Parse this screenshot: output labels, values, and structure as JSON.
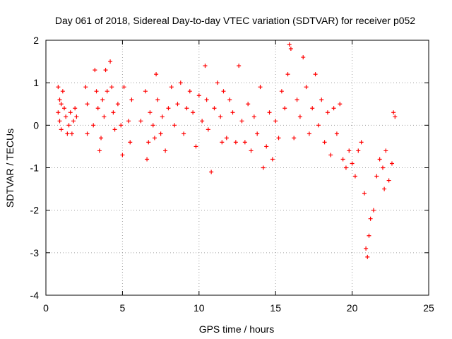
{
  "chart_data": {
    "type": "scatter",
    "title": "Day 061 of 2018, Sidereal Day-to-day VTEC variation (SDTVAR) for receiver p052",
    "xlabel": "GPS time / hours",
    "ylabel": "SDTVAR / TECUs",
    "xlim": [
      0,
      25
    ],
    "ylim": [
      -4,
      2
    ],
    "xticks": [
      "0",
      "5",
      "10",
      "15",
      "20",
      "25"
    ],
    "yticks": [
      "-4",
      "-3",
      "-2",
      "-1",
      "0",
      "1",
      "2"
    ],
    "grid": true,
    "marker": "plus",
    "series": [
      {
        "name": "SDTVAR",
        "color": "#ff0000",
        "description": "scattered plus-marker points from ~0.7 h to ~22.8 h; dense vertical clusters mostly between -1 and 1.5 TECU; peak near 15.9 h (~1.9), minimum near 21 h (~-3.1)",
        "x": [
          0.8,
          0.8,
          0.9,
          0.9,
          1.0,
          1.0,
          1.1,
          1.2,
          1.3,
          1.4,
          1.5,
          1.6,
          1.7,
          1.8,
          1.9,
          2.0,
          2.6,
          2.7,
          2.7,
          3.1,
          3.2,
          3.3,
          3.4,
          3.5,
          3.6,
          3.7,
          3.8,
          3.9,
          4.0,
          4.2,
          4.3,
          4.4,
          4.5,
          4.7,
          4.9,
          5.0,
          5.1,
          5.4,
          5.5,
          5.6,
          6.2,
          6.5,
          6.6,
          6.7,
          6.8,
          7.0,
          7.1,
          7.2,
          7.3,
          7.5,
          7.6,
          7.8,
          8.0,
          8.2,
          8.4,
          8.6,
          8.8,
          9.0,
          9.2,
          9.4,
          9.6,
          9.8,
          10.0,
          10.2,
          10.4,
          10.5,
          10.6,
          10.8,
          11.0,
          11.2,
          11.4,
          11.5,
          11.6,
          11.8,
          12.0,
          12.2,
          12.4,
          12.6,
          12.8,
          13.0,
          13.2,
          13.4,
          13.6,
          13.8,
          14.0,
          14.2,
          14.4,
          14.6,
          14.8,
          15.0,
          15.2,
          15.4,
          15.6,
          15.8,
          15.9,
          16.0,
          16.2,
          16.4,
          16.6,
          16.8,
          17.0,
          17.2,
          17.4,
          17.6,
          17.8,
          18.0,
          18.2,
          18.4,
          18.6,
          18.8,
          19.0,
          19.2,
          19.4,
          19.6,
          19.8,
          20.0,
          20.2,
          20.4,
          20.6,
          20.8,
          20.9,
          21.0,
          21.1,
          21.2,
          21.4,
          21.6,
          21.8,
          22.0,
          22.1,
          22.2,
          22.4,
          22.6,
          22.7,
          22.8
        ],
        "y": [
          0.9,
          0.3,
          0.6,
          0.1,
          0.5,
          -0.1,
          0.8,
          0.4,
          0.2,
          -0.2,
          0.0,
          0.3,
          -0.2,
          0.1,
          0.4,
          0.2,
          0.9,
          0.5,
          -0.2,
          0.0,
          1.3,
          0.8,
          0.4,
          -0.6,
          -0.3,
          0.6,
          0.2,
          1.3,
          0.8,
          1.5,
          0.9,
          0.3,
          -0.1,
          0.5,
          0.0,
          -0.7,
          0.9,
          0.1,
          -0.4,
          0.6,
          0.1,
          0.8,
          -0.8,
          -0.4,
          0.3,
          0.0,
          -0.3,
          1.2,
          0.6,
          -0.2,
          0.2,
          -0.6,
          0.4,
          0.9,
          0.0,
          0.5,
          1.0,
          -0.2,
          0.4,
          0.8,
          0.3,
          -0.5,
          0.7,
          0.1,
          1.4,
          0.6,
          -0.1,
          -1.1,
          0.4,
          1.0,
          0.2,
          -0.4,
          0.8,
          -0.3,
          0.6,
          0.3,
          -0.4,
          1.4,
          0.1,
          -0.4,
          0.5,
          -0.6,
          0.2,
          -0.2,
          0.9,
          -1.0,
          -0.5,
          0.3,
          -0.8,
          0.1,
          -0.3,
          0.8,
          0.4,
          1.2,
          1.9,
          1.8,
          -0.3,
          0.6,
          0.2,
          1.6,
          0.9,
          -0.2,
          0.4,
          1.2,
          0.0,
          0.6,
          -0.4,
          0.3,
          -0.7,
          0.4,
          -0.2,
          0.5,
          -0.8,
          -1.0,
          -0.6,
          -0.9,
          -1.2,
          -0.6,
          -0.4,
          -1.6,
          -2.9,
          -3.1,
          -2.6,
          -2.2,
          -2.0,
          -1.2,
          -0.8,
          -1.0,
          -1.5,
          -0.6,
          -1.3,
          -0.9,
          0.3,
          0.2
        ]
      }
    ]
  }
}
